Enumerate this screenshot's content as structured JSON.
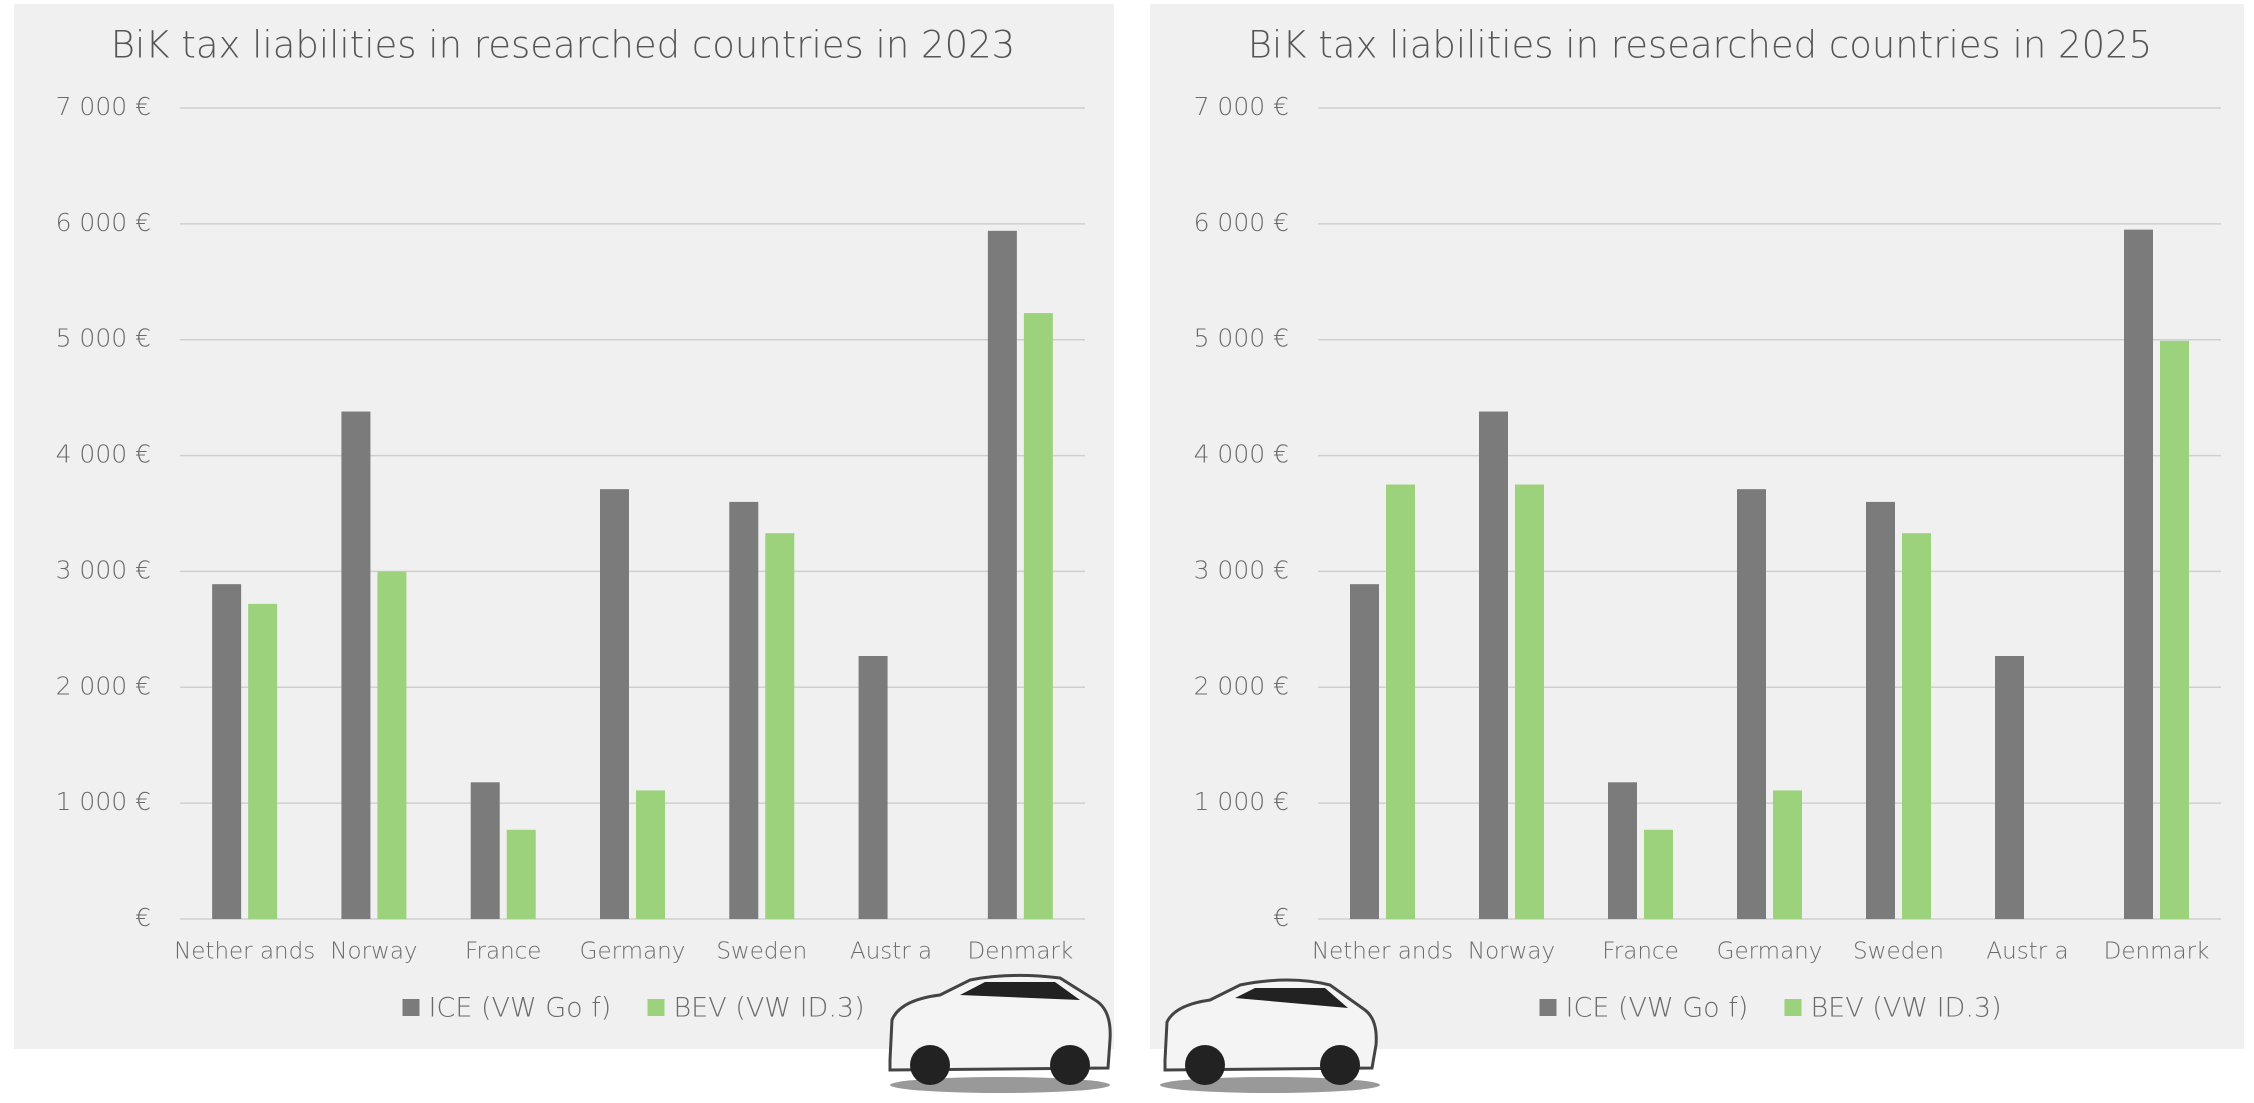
{
  "chart_data": [
    {
      "type": "bar",
      "title": "BiK tax liabilities in researched countries in 2023",
      "categories": [
        "Nether ands",
        "Norway",
        "France",
        "Germany",
        "Sweden",
        "Austr a",
        "Denmark"
      ],
      "series": [
        {
          "name": "ICE (VW Go f)",
          "color": "#7b7b7b",
          "values": [
            2890,
            4380,
            1180,
            3710,
            3600,
            2270,
            5940
          ]
        },
        {
          "name": "BEV (VW ID.3)",
          "color": "#9dd27c",
          "values": [
            2720,
            3000,
            770,
            1110,
            3330,
            null,
            5230
          ]
        }
      ],
      "ylim": [
        0,
        7000
      ],
      "yticks": [
        {
          "value": 0,
          "label": "€"
        },
        {
          "value": 1000,
          "label": "1 000 €"
        },
        {
          "value": 2000,
          "label": "2 000 €"
        },
        {
          "value": 3000,
          "label": "3 000 €"
        },
        {
          "value": 4000,
          "label": "4 000 €"
        },
        {
          "value": 5000,
          "label": "5 000 €"
        },
        {
          "value": 6000,
          "label": "6 000 €"
        },
        {
          "value": 7000,
          "label": "7 000 €"
        }
      ],
      "grid": true,
      "legend": "bottom"
    },
    {
      "type": "bar",
      "title": "BiK tax liabilities in researched countries in 2025",
      "categories": [
        "Nether ands",
        "Norway",
        "France",
        "Germany",
        "Sweden",
        "Austr a",
        "Denmark"
      ],
      "series": [
        {
          "name": "ICE (VW Go f)",
          "color": "#7b7b7b",
          "values": [
            2890,
            4380,
            1180,
            3710,
            3600,
            2270,
            5950
          ]
        },
        {
          "name": "BEV (VW ID.3)",
          "color": "#9dd27c",
          "values": [
            3750,
            3750,
            770,
            1110,
            3330,
            null,
            4990
          ]
        }
      ],
      "ylim": [
        0,
        7000
      ],
      "yticks": [
        {
          "value": 0,
          "label": "€"
        },
        {
          "value": 1000,
          "label": "1 000 €"
        },
        {
          "value": 2000,
          "label": "2 000 €"
        },
        {
          "value": 3000,
          "label": "3 000 €"
        },
        {
          "value": 4000,
          "label": "4 000 €"
        },
        {
          "value": 5000,
          "label": "5 000 €"
        },
        {
          "value": 6000,
          "label": "6 000 €"
        },
        {
          "value": 7000,
          "label": "7 000 €"
        }
      ],
      "grid": true,
      "legend": "bottom"
    }
  ]
}
